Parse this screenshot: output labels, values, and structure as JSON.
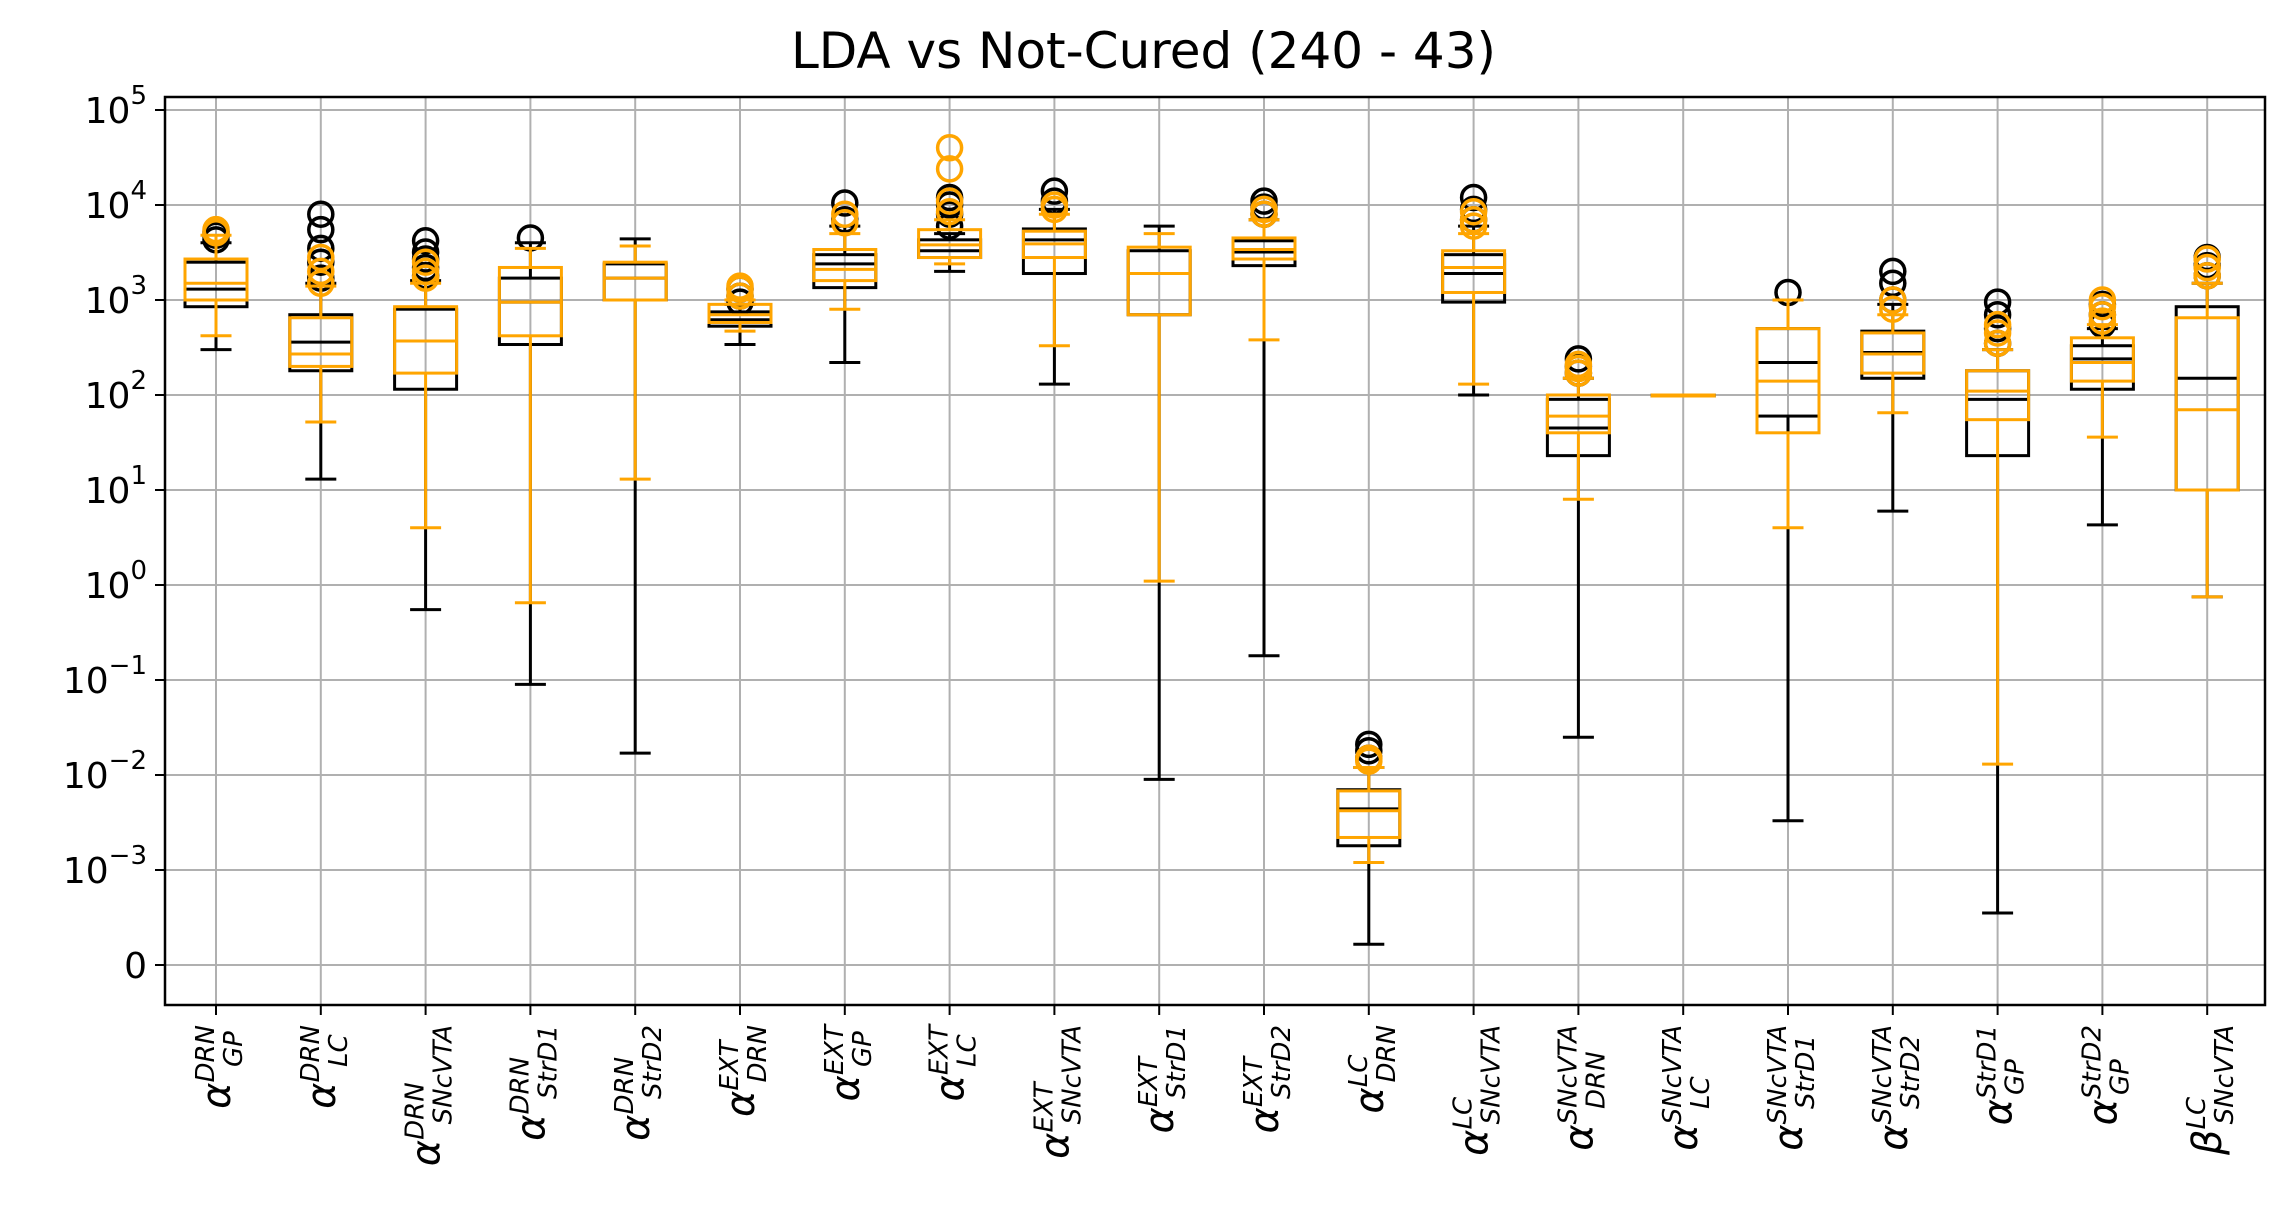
{
  "chart_data": {
    "type": "box",
    "title": "LDA vs Not-Cured (240 - 43)",
    "xlabel": "",
    "ylabel": "",
    "yscale": "symlog",
    "ylim": [
      0,
      100000
    ],
    "grid": true,
    "y_ticks": [
      {
        "value": 0,
        "base": "0",
        "exp": ""
      },
      {
        "value": 0.001,
        "base": "10",
        "exp": "−3"
      },
      {
        "value": 0.01,
        "base": "10",
        "exp": "−2"
      },
      {
        "value": 0.1,
        "base": "10",
        "exp": "−1"
      },
      {
        "value": 1,
        "base": "10",
        "exp": "0"
      },
      {
        "value": 10,
        "base": "10",
        "exp": "1"
      },
      {
        "value": 100,
        "base": "10",
        "exp": "2"
      },
      {
        "value": 1000,
        "base": "10",
        "exp": "3"
      },
      {
        "value": 10000,
        "base": "10",
        "exp": "4"
      },
      {
        "value": 100000,
        "base": "10",
        "exp": "5"
      }
    ],
    "categories": [
      {
        "sym": "α",
        "sup": "DRN",
        "sub": "GP"
      },
      {
        "sym": "α",
        "sup": "DRN",
        "sub": "LC"
      },
      {
        "sym": "α",
        "sup": "DRN",
        "sub": "SNcVTA"
      },
      {
        "sym": "α",
        "sup": "DRN",
        "sub": "StrD1"
      },
      {
        "sym": "α",
        "sup": "DRN",
        "sub": "StrD2"
      },
      {
        "sym": "α",
        "sup": "EXT",
        "sub": "DRN"
      },
      {
        "sym": "α",
        "sup": "EXT",
        "sub": "GP"
      },
      {
        "sym": "α",
        "sup": "EXT",
        "sub": "LC"
      },
      {
        "sym": "α",
        "sup": "EXT",
        "sub": "SNcVTA"
      },
      {
        "sym": "α",
        "sup": "EXT",
        "sub": "StrD1"
      },
      {
        "sym": "α",
        "sup": "EXT",
        "sub": "StrD2"
      },
      {
        "sym": "α",
        "sup": "LC",
        "sub": "DRN"
      },
      {
        "sym": "α",
        "sup": "LC",
        "sub": "SNcVTA"
      },
      {
        "sym": "α",
        "sup": "SNcVTA",
        "sub": "DRN"
      },
      {
        "sym": "α",
        "sup": "SNcVTA",
        "sub": "LC"
      },
      {
        "sym": "α",
        "sup": "SNcVTA",
        "sub": "StrD1"
      },
      {
        "sym": "α",
        "sup": "SNcVTA",
        "sub": "StrD2"
      },
      {
        "sym": "α",
        "sup": "StrD1",
        "sub": "GP"
      },
      {
        "sym": "α",
        "sup": "StrD2",
        "sub": "GP"
      },
      {
        "sym": "β",
        "sup": "LC",
        "sub": "SNcVTA"
      }
    ],
    "series": [
      {
        "name": "",
        "color": "#000000",
        "boxes": [
          {
            "whislo": 300,
            "q1": 850,
            "med": 1300,
            "q3": 2500,
            "whishi": 4000,
            "fliers": [
              4300,
              4800,
              5200
            ]
          },
          {
            "whislo": 13,
            "q1": 180,
            "med": 360,
            "q3": 700,
            "whishi": 1500,
            "fliers": [
              1700,
              2500,
              3500,
              5500,
              8000
            ]
          },
          {
            "whislo": 0.55,
            "q1": 115,
            "med": 370,
            "q3": 800,
            "whishi": 1600,
            "fliers": [
              1800,
              2200,
              2700,
              3200,
              4200
            ]
          },
          {
            "whislo": 0.09,
            "q1": 340,
            "med": 950,
            "q3": 1700,
            "whishi": 4000,
            "fliers": [
              4500
            ]
          },
          {
            "whislo": 0.017,
            "q1": 1000,
            "med": 1700,
            "q3": 2400,
            "whishi": 4400,
            "fliers": []
          },
          {
            "whislo": 340,
            "q1": 530,
            "med": 620,
            "q3": 750,
            "whishi": 900,
            "fliers": [
              950,
              1100,
              1300
            ]
          },
          {
            "whislo": 220,
            "q1": 1350,
            "med": 2400,
            "q3": 3000,
            "whishi": 6000,
            "fliers": [
              7000,
              10500
            ]
          },
          {
            "whislo": 2000,
            "q1": 2800,
            "med": 3300,
            "q3": 4300,
            "whishi": 5000,
            "fliers": [
              6000,
              8000,
              10000,
              12000
            ]
          },
          {
            "whislo": 130,
            "q1": 1900,
            "med": 4300,
            "q3": 5600,
            "whishi": 9000,
            "fliers": [
              11000,
              14000
            ]
          },
          {
            "whislo": 0.009,
            "q1": 700,
            "med": 1900,
            "q3": 3300,
            "whishi": 6000,
            "fliers": []
          },
          {
            "whislo": 0.18,
            "q1": 2300,
            "med": 3200,
            "q3": 4200,
            "whishi": 7000,
            "fliers": [
              8000,
              9500,
              11000
            ]
          },
          {
            "whislo": 0.0002,
            "q1": 0.0018,
            "med": 0.0044,
            "q3": 0.007,
            "whishi": 0.012,
            "fliers": [
              0.015,
              0.018,
              0.021
            ]
          },
          {
            "whislo": 100,
            "q1": 950,
            "med": 1900,
            "q3": 3000,
            "whishi": 6000,
            "fliers": [
              7000,
              9000,
              12000
            ]
          },
          {
            "whislo": 0.025,
            "q1": 23,
            "med": 45,
            "q3": 90,
            "whishi": 150,
            "fliers": [
              170,
              200,
              240
            ]
          },
          {
            "whislo": 100,
            "q1": 100,
            "med": 100,
            "q3": 100,
            "whishi": 100,
            "fliers": []
          },
          {
            "whislo": 0.0033,
            "q1": 60,
            "med": 220,
            "q3": 500,
            "whishi": 1000,
            "fliers": [
              1200
            ]
          },
          {
            "whislo": 6,
            "q1": 150,
            "med": 280,
            "q3": 470,
            "whishi": 900,
            "fliers": [
              1000,
              1500,
              2000
            ]
          },
          {
            "whislo": 0.0005,
            "q1": 23,
            "med": 90,
            "q3": 180,
            "whishi": 300,
            "fliers": [
              350,
              500,
              700,
              950
            ]
          },
          {
            "whislo": 4.3,
            "q1": 115,
            "med": 240,
            "q3": 330,
            "whishi": 500,
            "fliers": [
              550,
              700,
              900
            ]
          },
          {
            "whislo": 0.75,
            "q1": 10,
            "med": 150,
            "q3": 850,
            "whishi": 1500,
            "fliers": [
              1800,
              2300,
              2800
            ]
          }
        ]
      },
      {
        "name": "",
        "color": "#FFA500",
        "boxes": [
          {
            "whislo": 420,
            "q1": 1000,
            "med": 1500,
            "q3": 2700,
            "whishi": 4800,
            "fliers": [
              5100,
              5500
            ]
          },
          {
            "whislo": 52,
            "q1": 200,
            "med": 270,
            "q3": 650,
            "whishi": 1400,
            "fliers": [
              1500,
              2000,
              2800
            ]
          },
          {
            "whislo": 4,
            "q1": 170,
            "med": 370,
            "q3": 850,
            "whishi": 1500,
            "fliers": [
              1700,
              2000,
              2500
            ]
          },
          {
            "whislo": 0.65,
            "q1": 420,
            "med": 950,
            "q3": 2200,
            "whishi": 3500,
            "fliers": []
          },
          {
            "whislo": 13,
            "q1": 1000,
            "med": 1700,
            "q3": 2500,
            "whishi": 3700,
            "fliers": []
          },
          {
            "whislo": 470,
            "q1": 580,
            "med": 700,
            "q3": 900,
            "whishi": 1000,
            "fliers": [
              1100,
              1300,
              1400
            ]
          },
          {
            "whislo": 800,
            "q1": 1600,
            "med": 2100,
            "q3": 3400,
            "whishi": 5000,
            "fliers": [
              6500,
              8000
            ]
          },
          {
            "whislo": 2400,
            "q1": 2800,
            "med": 3800,
            "q3": 5500,
            "whishi": 7000,
            "fliers": [
              8500,
              11000,
              24000,
              40000
            ]
          },
          {
            "whislo": 330,
            "q1": 2800,
            "med": 3900,
            "q3": 5300,
            "whishi": 8000,
            "fliers": [
              9000,
              10000
            ]
          },
          {
            "whislo": 1.1,
            "q1": 700,
            "med": 1900,
            "q3": 3600,
            "whishi": 5000,
            "fliers": []
          },
          {
            "whislo": 380,
            "q1": 2700,
            "med": 3400,
            "q3": 4500,
            "whishi": 7000,
            "fliers": [
              8000,
              9000
            ]
          },
          {
            "whislo": 0.0012,
            "q1": 0.0022,
            "med": 0.0042,
            "q3": 0.0068,
            "whishi": 0.012,
            "fliers": [
              0.014,
              0.015
            ]
          },
          {
            "whislo": 130,
            "q1": 1200,
            "med": 2200,
            "q3": 3300,
            "whishi": 5000,
            "fliers": [
              6000,
              7000,
              8500
            ]
          },
          {
            "whislo": 8,
            "q1": 40,
            "med": 60,
            "q3": 100,
            "whishi": 150,
            "fliers": [
              170,
              190,
              210
            ]
          },
          {
            "whislo": 100,
            "q1": 100,
            "med": 100,
            "q3": 100,
            "whishi": 100,
            "fliers": []
          },
          {
            "whislo": 4,
            "q1": 40,
            "med": 140,
            "q3": 500,
            "whishi": 1000,
            "fliers": []
          },
          {
            "whislo": 65,
            "q1": 170,
            "med": 270,
            "q3": 450,
            "whishi": 700,
            "fliers": [
              800,
              1000
            ]
          },
          {
            "whislo": 0.013,
            "q1": 55,
            "med": 110,
            "q3": 180,
            "whishi": 300,
            "fliers": [
              350,
              450,
              550
            ]
          },
          {
            "whislo": 36,
            "q1": 140,
            "med": 220,
            "q3": 400,
            "whishi": 550,
            "fliers": [
              600,
              700,
              850,
              1000
            ]
          },
          {
            "whislo": 0.75,
            "q1": 10,
            "med": 70,
            "q3": 650,
            "whishi": 1500,
            "fliers": [
              1800,
              2200,
              2700
            ]
          }
        ]
      }
    ]
  }
}
